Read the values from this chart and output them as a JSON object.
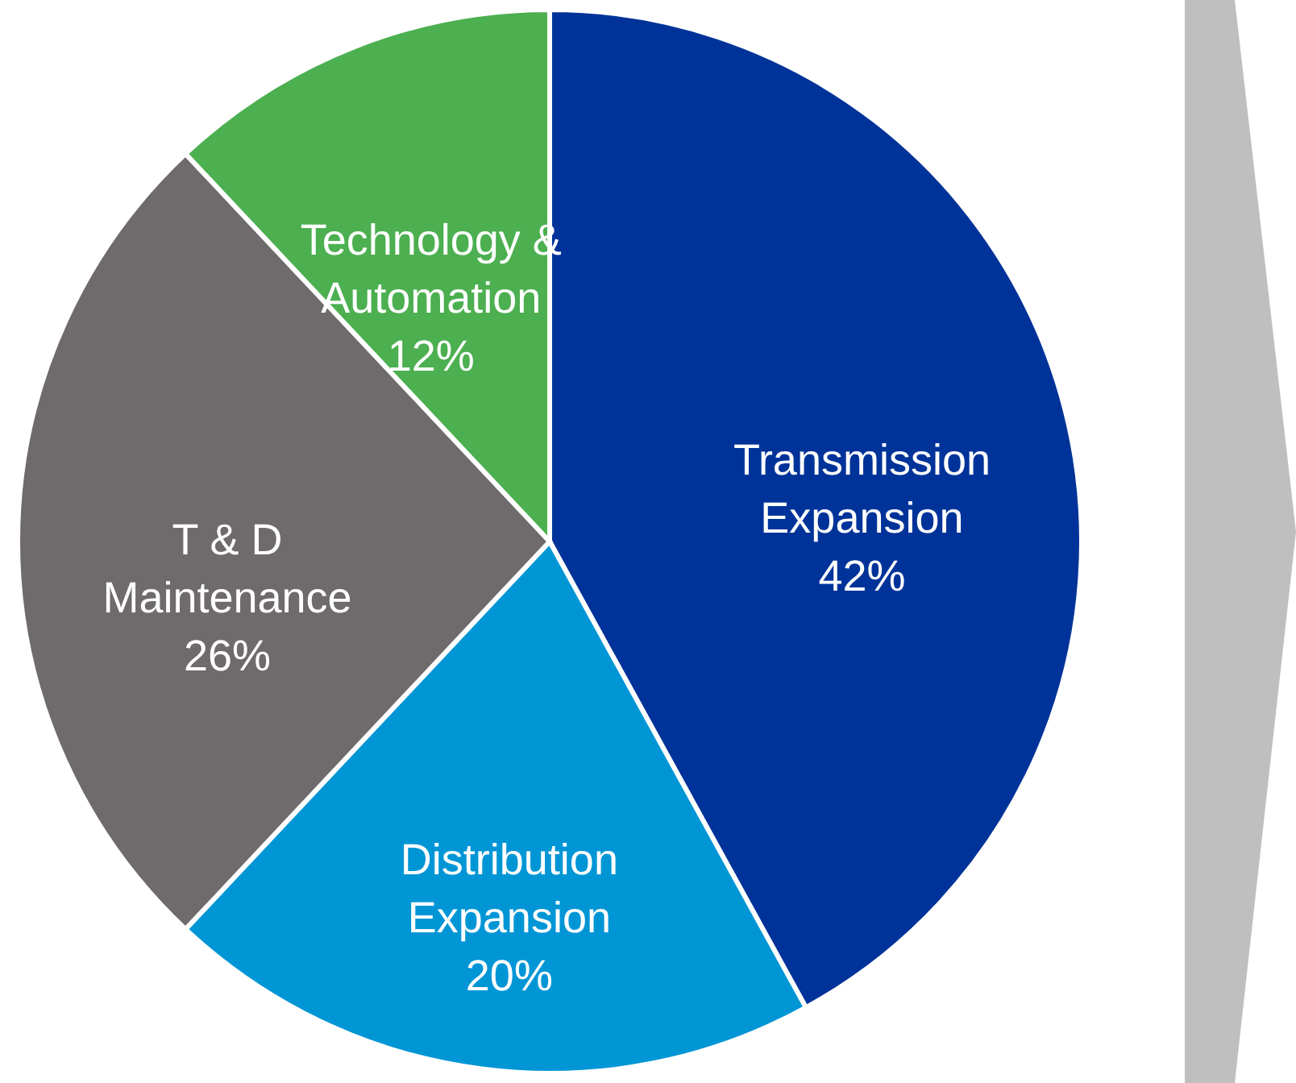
{
  "chart_data": {
    "type": "pie",
    "categories": [
      "Transmission Expansion",
      "Distribution Expansion",
      "T & D Maintenance",
      "Technology & Automation"
    ],
    "values": [
      42,
      20,
      26,
      12
    ],
    "colors": [
      "#003399",
      "#0096d6",
      "#6f6a6b",
      "#4caf50"
    ],
    "value_labels": [
      "42%",
      "20%",
      "26%",
      "12%"
    ]
  }
}
